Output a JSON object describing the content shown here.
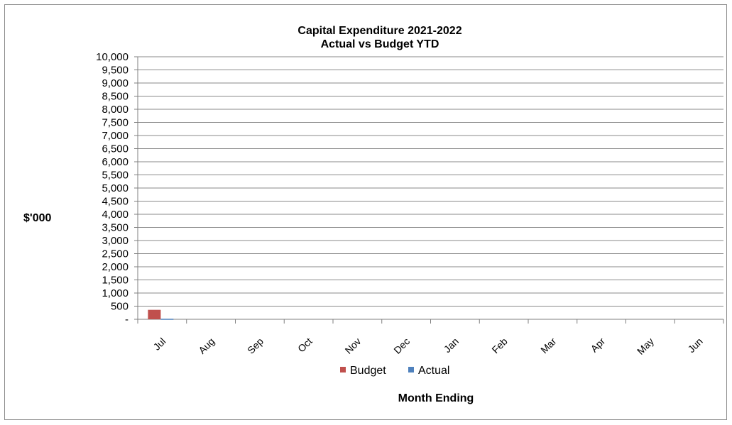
{
  "chart_data": {
    "type": "bar",
    "title_lines": [
      "Capital Expenditure 2021-2022",
      "Actual vs Budget YTD"
    ],
    "xlabel": "Month Ending",
    "ylabel": "$'000",
    "categories": [
      "Jul",
      "Aug",
      "Sep",
      "Oct",
      "Nov",
      "Dec",
      "Jan",
      "Feb",
      "Mar",
      "Apr",
      "May",
      "Jun"
    ],
    "ylim": [
      0,
      10000
    ],
    "ytick_step": 500,
    "ytick_labels": [
      "-",
      "500",
      "1,000",
      "1,500",
      "2,000",
      "2,500",
      "3,000",
      "3,500",
      "4,000",
      "4,500",
      "5,000",
      "5,500",
      "6,000",
      "6,500",
      "7,000",
      "7,500",
      "8,000",
      "8,500",
      "9,000",
      "9,500",
      "10,000"
    ],
    "grid": true,
    "legend_position": "bottom",
    "series": [
      {
        "name": "Budget",
        "color": "#c0504d",
        "values": [
          360,
          null,
          null,
          null,
          null,
          null,
          null,
          null,
          null,
          null,
          null,
          null
        ]
      },
      {
        "name": "Actual",
        "color": "#4f81bd",
        "values": [
          20,
          null,
          null,
          null,
          null,
          null,
          null,
          null,
          null,
          null,
          null,
          null
        ]
      }
    ]
  }
}
